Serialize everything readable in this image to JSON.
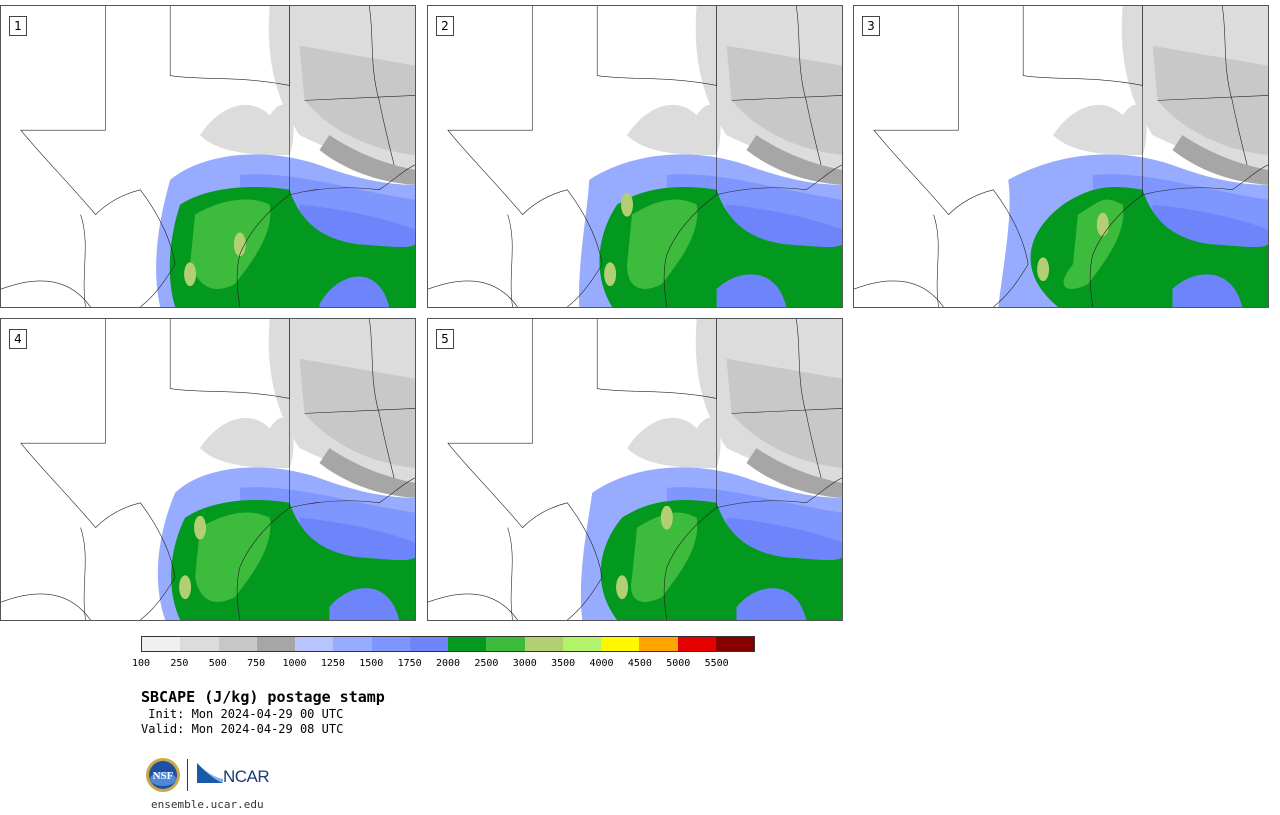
{
  "panels": [
    {
      "number": "1",
      "variant": 0
    },
    {
      "number": "2",
      "variant": 1
    },
    {
      "number": "3",
      "variant": 2
    },
    {
      "number": "4",
      "variant": 3
    },
    {
      "number": "5",
      "variant": 4
    }
  ],
  "colorbar": {
    "colors": [
      "#f0f0f0",
      "#dcdcdc",
      "#c8c8c8",
      "#a6a6a6",
      "#b7c4ff",
      "#97acff",
      "#8096ff",
      "#6e84fa",
      "#03991f",
      "#3dbb3d",
      "#b3cf73",
      "#b2f36a",
      "#fff700",
      "#ffa400",
      "#e50000",
      "#870000"
    ],
    "labels": [
      "100",
      "250",
      "500",
      "750",
      "1000",
      "1250",
      "1500",
      "1750",
      "2000",
      "2500",
      "3000",
      "3500",
      "4000",
      "4500",
      "5000",
      "5500"
    ]
  },
  "title": "SBCAPE (J/kg) postage stamp",
  "init": " Init: Mon 2024-04-29 00 UTC",
  "valid": "Valid: Mon 2024-04-29 08 UTC",
  "logos": {
    "nsf": "NSF",
    "ncar": "NCAR"
  },
  "website": "ensemble.ucar.edu"
}
